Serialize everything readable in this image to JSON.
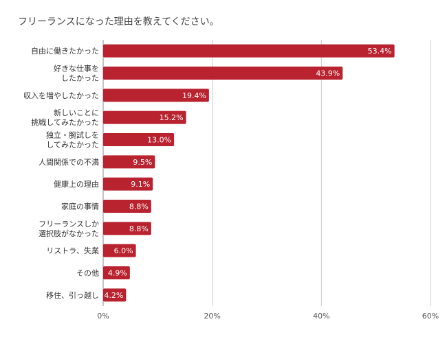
{
  "chart_data": {
    "type": "bar",
    "orientation": "horizontal",
    "title": "フリーランスになった理由を教えてください。",
    "categories": [
      [
        "自由に働きたかった"
      ],
      [
        "好きな仕事を",
        "したかった"
      ],
      [
        "収入を増やしたかった"
      ],
      [
        "新しいことに",
        "挑戦してみたかった"
      ],
      [
        "独立・腕試しを",
        "してみたかった"
      ],
      [
        "人間関係での不満"
      ],
      [
        "健康上の理由"
      ],
      [
        "家庭の事情"
      ],
      [
        "フリーランスしか",
        "選択肢がなかった"
      ],
      [
        "リストラ、失業"
      ],
      [
        "その他"
      ],
      [
        "移住、引っ越し"
      ]
    ],
    "values": [
      53.4,
      43.9,
      19.4,
      15.2,
      13.0,
      9.5,
      9.1,
      8.8,
      8.8,
      6.0,
      4.9,
      4.2
    ],
    "value_labels": [
      "53.4%",
      "43.9%",
      "19.4%",
      "15.2%",
      "13.0%",
      "9.5%",
      "9.1%",
      "8.8%",
      "8.8%",
      "6.0%",
      "4.9%",
      "4.2%"
    ],
    "xlim": [
      0,
      60
    ],
    "xticks": [
      0,
      20,
      40,
      60
    ],
    "xtick_labels": [
      "0%",
      "20%",
      "40%",
      "60%"
    ],
    "grid": true,
    "legend": "none",
    "colors": {
      "bar": "#b8232f",
      "grid": "#cccccc",
      "axis": "#888888"
    }
  }
}
